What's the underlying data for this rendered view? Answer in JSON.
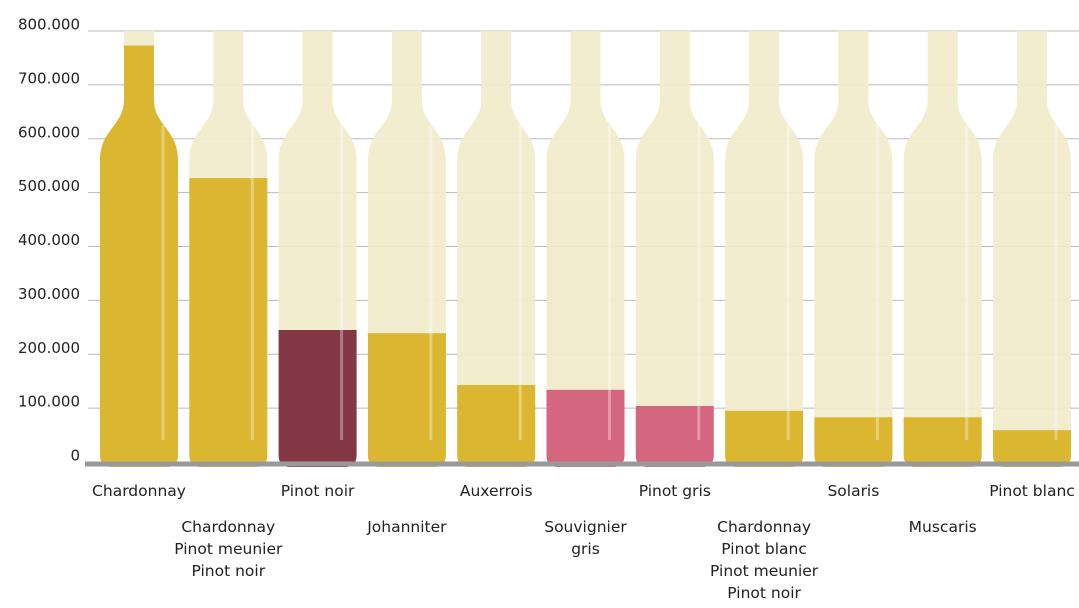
{
  "chart_data": {
    "type": "bar",
    "categories": [
      "Chardonnay",
      "Chardonnay\nPinot meunier\nPinot noir",
      "Pinot noir",
      "Johanniter",
      "Auxerrois",
      "Souvignier\ngris",
      "Pinot gris",
      "Chardonnay\nPinot blanc\nPinot meunier\nPinot noir",
      "Solaris",
      "Muscaris",
      "Pinot blanc"
    ],
    "values": [
      773000,
      527000,
      245000,
      239000,
      143000,
      134000,
      104000,
      95000,
      83000,
      83000,
      59000
    ],
    "colors": [
      "#dab631",
      "#dab631",
      "#843744",
      "#dab631",
      "#dab631",
      "#d4667f",
      "#d4667f",
      "#dab631",
      "#dab631",
      "#dab631",
      "#dab631"
    ],
    "ylim": [
      0,
      800000
    ],
    "yticks": [
      0,
      {
        "value": 100000,
        "label": "100.000"
      },
      {
        "value": 200000,
        "label": "200.000"
      },
      {
        "value": 300000,
        "label": "300.000"
      },
      {
        "value": 400000,
        "label": "400.000"
      },
      {
        "value": 500000,
        "label": "500.000"
      },
      {
        "value": 600000,
        "label": "600.000"
      },
      {
        "value": 700000,
        "label": "700.000"
      },
      {
        "value": 800000,
        "label": "800.000"
      }
    ],
    "grid": true
  }
}
